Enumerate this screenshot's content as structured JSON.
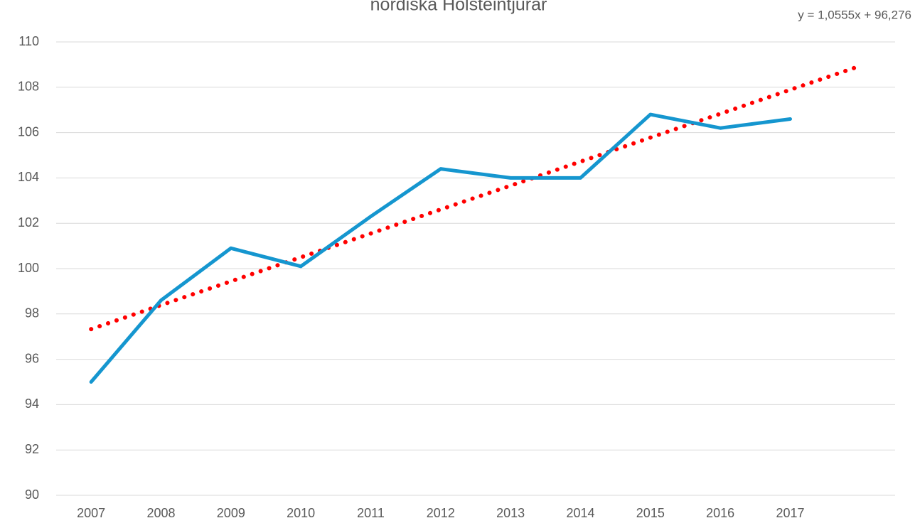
{
  "chart_data": {
    "type": "line",
    "title": "nordiska Holsteintjurar",
    "annotation": "y = 1,0555x + 96,276",
    "categories": [
      "2007",
      "2008",
      "2009",
      "2010",
      "2011",
      "2012",
      "2013",
      "2014",
      "2015",
      "2016",
      "2017",
      null
    ],
    "series": [
      {
        "color": "#1596cf",
        "style": "solid",
        "values": [
          95,
          98.6,
          100.9,
          100.1,
          102.3,
          104.4,
          104.0,
          104.0,
          106.8,
          106.2,
          106.6,
          null
        ]
      },
      {
        "color": "#ff0000",
        "style": "dotted",
        "values": [
          97.33,
          98.39,
          99.44,
          100.5,
          101.55,
          102.61,
          103.66,
          104.72,
          105.78,
          106.83,
          107.89,
          108.94
        ]
      }
    ],
    "ylim": [
      90,
      110
    ],
    "yticks": [
      90,
      92,
      94,
      96,
      98,
      100,
      102,
      104,
      106,
      108,
      110
    ],
    "grid": true
  }
}
